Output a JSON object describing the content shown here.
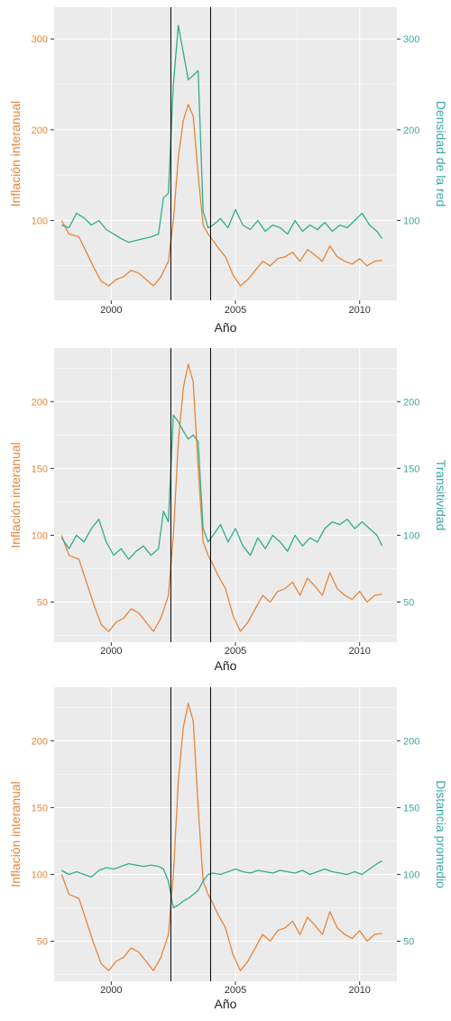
{
  "colors": {
    "inflation": "#e8853a",
    "metric": "#2fae8d",
    "axis_left_text": "#e8853a",
    "axis_right_text": "#3aa8a5",
    "panel_bg": "#ebebeb",
    "grid": "#ffffff",
    "vline": "#000000"
  },
  "chart_data": [
    {
      "type": "line",
      "xlabel": "Año",
      "ylabel_left": "Inflación interanual",
      "ylabel_right": "Densidad de la red",
      "xlim": [
        1997.7,
        2011.5
      ],
      "ylim": [
        12,
        335
      ],
      "x_ticks": [
        2000,
        2005,
        2010
      ],
      "y_ticks_left": [
        100,
        200,
        300
      ],
      "y_ticks_right": [
        100,
        200,
        300
      ],
      "vlines": [
        2002.4,
        2004.0
      ],
      "grid": true,
      "series": [
        {
          "name": "Inflación interanual",
          "axis": "left",
          "x": [
            1998.0,
            1998.3,
            1998.7,
            1999.0,
            1999.3,
            1999.6,
            1999.9,
            2000.2,
            2000.5,
            2000.8,
            2001.1,
            2001.4,
            2001.7,
            2002.0,
            2002.3,
            2002.5,
            2002.7,
            2002.9,
            2003.1,
            2003.3,
            2003.5,
            2003.7,
            2003.9,
            2004.1,
            2004.3,
            2004.6,
            2004.9,
            2005.2,
            2005.5,
            2005.8,
            2006.1,
            2006.4,
            2006.7,
            2007.0,
            2007.3,
            2007.6,
            2007.9,
            2008.2,
            2008.5,
            2008.8,
            2009.1,
            2009.4,
            2009.7,
            2010.0,
            2010.3,
            2010.6,
            2010.9
          ],
          "y": [
            100,
            85,
            82,
            65,
            48,
            33,
            28,
            35,
            38,
            45,
            42,
            35,
            28,
            38,
            55,
            100,
            170,
            210,
            228,
            215,
            150,
            95,
            85,
            78,
            70,
            60,
            40,
            28,
            35,
            45,
            55,
            50,
            58,
            60,
            65,
            55,
            68,
            62,
            55,
            72,
            60,
            55,
            52,
            58,
            50,
            55,
            56
          ]
        },
        {
          "name": "Densidad de la red",
          "axis": "right",
          "x": [
            1998.0,
            1998.3,
            1998.6,
            1998.9,
            1999.2,
            1999.5,
            1999.8,
            2000.1,
            2000.4,
            2000.7,
            2001.0,
            2001.3,
            2001.6,
            2001.9,
            2002.1,
            2002.3,
            2002.5,
            2002.7,
            2002.9,
            2003.1,
            2003.3,
            2003.5,
            2003.7,
            2003.9,
            2004.1,
            2004.4,
            2004.7,
            2005.0,
            2005.3,
            2005.6,
            2005.9,
            2006.2,
            2006.5,
            2006.8,
            2007.1,
            2007.4,
            2007.7,
            2008.0,
            2008.3,
            2008.6,
            2008.9,
            2009.2,
            2009.5,
            2009.8,
            2010.1,
            2010.4,
            2010.7,
            2010.9
          ],
          "y": [
            95,
            92,
            108,
            103,
            95,
            100,
            90,
            85,
            80,
            76,
            78,
            80,
            82,
            85,
            125,
            130,
            250,
            315,
            285,
            255,
            260,
            265,
            110,
            92,
            95,
            102,
            92,
            112,
            95,
            90,
            100,
            88,
            95,
            92,
            85,
            100,
            88,
            95,
            90,
            98,
            88,
            95,
            92,
            100,
            108,
            95,
            88,
            80
          ]
        }
      ]
    },
    {
      "type": "line",
      "xlabel": "Año",
      "ylabel_left": "Inflación interanual",
      "ylabel_right": "Transitividad",
      "xlim": [
        1997.7,
        2011.5
      ],
      "ylim": [
        20,
        240
      ],
      "x_ticks": [
        2000,
        2005,
        2010
      ],
      "y_ticks_left": [
        50,
        100,
        150,
        200
      ],
      "y_ticks_right": [
        50,
        100,
        150,
        200
      ],
      "vlines": [
        2002.4,
        2004.0
      ],
      "grid": true,
      "series": [
        {
          "name": "Inflación interanual",
          "axis": "left",
          "x": [
            1998.0,
            1998.3,
            1998.7,
            1999.0,
            1999.3,
            1999.6,
            1999.9,
            2000.2,
            2000.5,
            2000.8,
            2001.1,
            2001.4,
            2001.7,
            2002.0,
            2002.3,
            2002.5,
            2002.7,
            2002.9,
            2003.1,
            2003.3,
            2003.5,
            2003.7,
            2003.9,
            2004.1,
            2004.3,
            2004.6,
            2004.9,
            2005.2,
            2005.5,
            2005.8,
            2006.1,
            2006.4,
            2006.7,
            2007.0,
            2007.3,
            2007.6,
            2007.9,
            2008.2,
            2008.5,
            2008.8,
            2009.1,
            2009.4,
            2009.7,
            2010.0,
            2010.3,
            2010.6,
            2010.9
          ],
          "y": [
            100,
            85,
            82,
            65,
            48,
            33,
            28,
            35,
            38,
            45,
            42,
            35,
            28,
            38,
            55,
            100,
            170,
            210,
            228,
            215,
            150,
            95,
            85,
            78,
            70,
            60,
            40,
            28,
            35,
            45,
            55,
            50,
            58,
            60,
            65,
            55,
            68,
            62,
            55,
            72,
            60,
            55,
            52,
            58,
            50,
            55,
            56
          ]
        },
        {
          "name": "Transitividad",
          "axis": "right",
          "x": [
            1998.0,
            1998.3,
            1998.6,
            1998.9,
            1999.2,
            1999.5,
            1999.8,
            2000.1,
            2000.4,
            2000.7,
            2001.0,
            2001.3,
            2001.6,
            2001.9,
            2002.1,
            2002.3,
            2002.5,
            2002.7,
            2002.9,
            2003.1,
            2003.3,
            2003.5,
            2003.7,
            2003.9,
            2004.1,
            2004.4,
            2004.7,
            2005.0,
            2005.3,
            2005.6,
            2005.9,
            2006.2,
            2006.5,
            2006.8,
            2007.1,
            2007.4,
            2007.7,
            2008.0,
            2008.3,
            2008.6,
            2008.9,
            2009.2,
            2009.5,
            2009.8,
            2010.1,
            2010.4,
            2010.7,
            2010.9
          ],
          "y": [
            98,
            90,
            100,
            95,
            105,
            112,
            95,
            85,
            90,
            82,
            88,
            92,
            85,
            90,
            118,
            110,
            190,
            185,
            178,
            172,
            175,
            170,
            105,
            95,
            100,
            108,
            95,
            105,
            92,
            85,
            98,
            90,
            100,
            95,
            88,
            100,
            92,
            98,
            95,
            105,
            110,
            108,
            112,
            105,
            110,
            105,
            100,
            92
          ]
        }
      ]
    },
    {
      "type": "line",
      "xlabel": "Año",
      "ylabel_left": "Inflación interanual",
      "ylabel_right": "Distancia promedio",
      "xlim": [
        1997.7,
        2011.5
      ],
      "ylim": [
        20,
        240
      ],
      "x_ticks": [
        2000,
        2005,
        2010
      ],
      "y_ticks_left": [
        50,
        100,
        150,
        200
      ],
      "y_ticks_right": [
        50,
        100,
        150,
        200
      ],
      "vlines": [
        2002.4,
        2004.0
      ],
      "grid": true,
      "series": [
        {
          "name": "Inflación interanual",
          "axis": "left",
          "x": [
            1998.0,
            1998.3,
            1998.7,
            1999.0,
            1999.3,
            1999.6,
            1999.9,
            2000.2,
            2000.5,
            2000.8,
            2001.1,
            2001.4,
            2001.7,
            2002.0,
            2002.3,
            2002.5,
            2002.7,
            2002.9,
            2003.1,
            2003.3,
            2003.5,
            2003.7,
            2003.9,
            2004.1,
            2004.3,
            2004.6,
            2004.9,
            2005.2,
            2005.5,
            2005.8,
            2006.1,
            2006.4,
            2006.7,
            2007.0,
            2007.3,
            2007.6,
            2007.9,
            2008.2,
            2008.5,
            2008.8,
            2009.1,
            2009.4,
            2009.7,
            2010.0,
            2010.3,
            2010.6,
            2010.9
          ],
          "y": [
            100,
            85,
            82,
            65,
            48,
            33,
            28,
            35,
            38,
            45,
            42,
            35,
            28,
            38,
            55,
            100,
            170,
            210,
            228,
            215,
            150,
            95,
            85,
            78,
            70,
            60,
            40,
            28,
            35,
            45,
            55,
            50,
            58,
            60,
            65,
            55,
            68,
            62,
            55,
            72,
            60,
            55,
            52,
            58,
            50,
            55,
            56
          ]
        },
        {
          "name": "Distancia promedio",
          "axis": "right",
          "x": [
            1998.0,
            1998.3,
            1998.6,
            1998.9,
            1999.2,
            1999.5,
            1999.8,
            2000.1,
            2000.4,
            2000.7,
            2001.0,
            2001.3,
            2001.6,
            2001.9,
            2002.1,
            2002.3,
            2002.5,
            2002.7,
            2002.9,
            2003.1,
            2003.3,
            2003.5,
            2003.7,
            2003.9,
            2004.1,
            2004.4,
            2004.7,
            2005.0,
            2005.3,
            2005.6,
            2005.9,
            2006.2,
            2006.5,
            2006.8,
            2007.1,
            2007.4,
            2007.7,
            2008.0,
            2008.3,
            2008.6,
            2008.9,
            2009.2,
            2009.5,
            2009.8,
            2010.1,
            2010.4,
            2010.7,
            2010.9
          ],
          "y": [
            103,
            100,
            102,
            100,
            98,
            103,
            105,
            104,
            106,
            108,
            107,
            106,
            107,
            106,
            104,
            95,
            75,
            77,
            80,
            82,
            85,
            88,
            95,
            100,
            101,
            100,
            102,
            104,
            102,
            101,
            103,
            102,
            101,
            103,
            102,
            101,
            103,
            100,
            102,
            104,
            102,
            101,
            100,
            102,
            100,
            104,
            108,
            110
          ]
        }
      ]
    }
  ]
}
